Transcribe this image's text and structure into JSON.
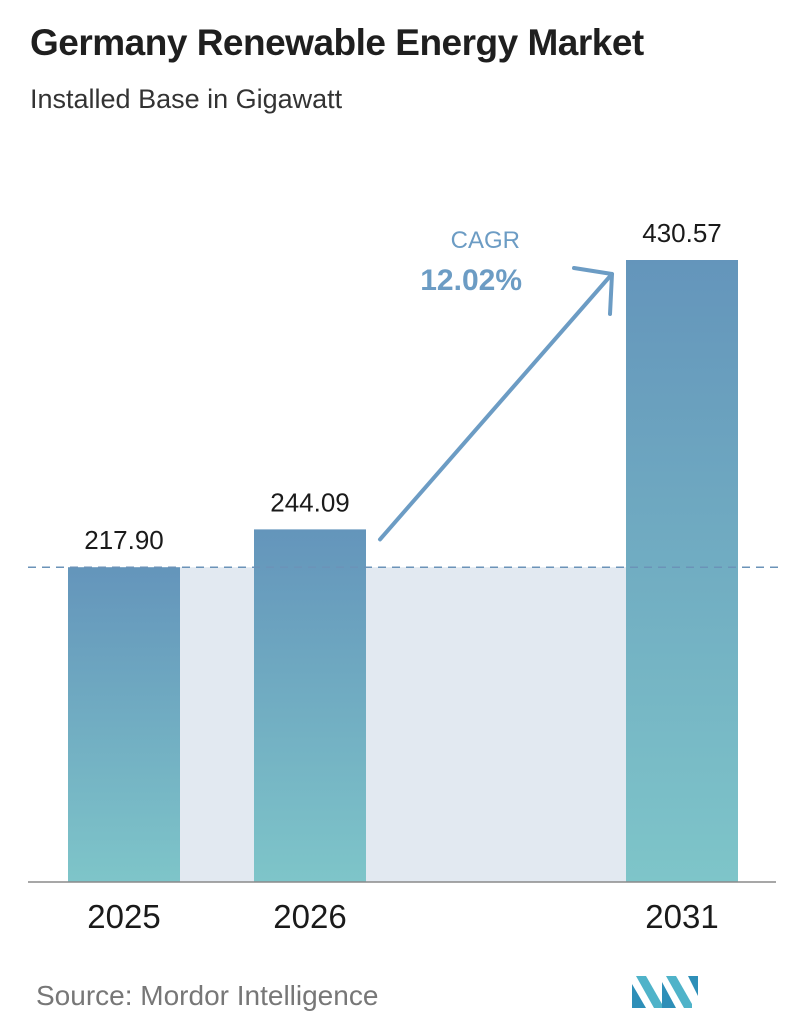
{
  "header": {
    "title": "Germany Renewable Energy Market",
    "subtitle": "Installed Base in Gigawatt"
  },
  "chart_data": {
    "type": "bar",
    "categories": [
      "2025",
      "2026",
      "2031"
    ],
    "values": [
      217.9,
      244.09,
      430.57
    ],
    "value_labels": [
      "217.90",
      "244.09",
      "430.57"
    ],
    "unit": "Gigawatt",
    "ylim": [
      0,
      430.57
    ],
    "grid": false,
    "annotation": {
      "label": "CAGR",
      "value": "12.02%"
    },
    "colors": {
      "bar_top": "#6495bb",
      "bar_bottom": "#7ec5c9",
      "band": "#e2e9f1",
      "annotation": "#6c9cc4",
      "reference_line": "#6b93b8"
    }
  },
  "footer": {
    "source": "Source:  Mordor Intelligence",
    "logo_icon": "mordor-intelligence-logo-icon"
  }
}
